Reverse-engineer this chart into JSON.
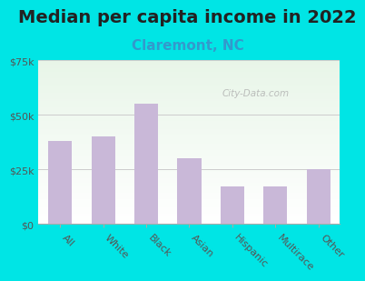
{
  "title": "Median per capita income in 2022",
  "subtitle": "Claremont, NC",
  "categories": [
    "All",
    "White",
    "Black",
    "Asian",
    "Hispanic",
    "Multirace",
    "Other"
  ],
  "values": [
    38000,
    40000,
    55000,
    30000,
    17000,
    17000,
    25000
  ],
  "bar_color": "#c9b8d8",
  "title_fontsize": 14,
  "subtitle_fontsize": 11,
  "subtitle_color": "#3399cc",
  "title_color": "#222222",
  "background_color": "#00e5e5",
  "plot_bg_top": "#e8f5e8",
  "plot_bg_bottom": "#ffffff",
  "ylim": [
    0,
    75000
  ],
  "yticks": [
    0,
    25000,
    50000,
    75000
  ],
  "ytick_labels": [
    "$0",
    "$25k",
    "$50k",
    "$75k"
  ],
  "watermark": "City-Data.com",
  "tick_color": "#555555"
}
